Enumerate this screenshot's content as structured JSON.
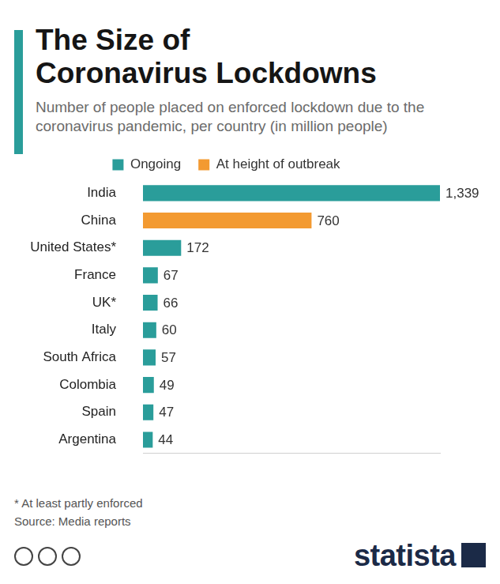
{
  "chart_data": {
    "type": "bar",
    "orientation": "horizontal",
    "title": "The Size of Coronavirus Lockdowns",
    "subtitle": "Number of people placed on enforced lockdown due to the coronavirus pandemic, per country (in million people)",
    "categories": [
      "India",
      "China",
      "United States*",
      "France",
      "UK*",
      "Italy",
      "South Africa",
      "Colombia",
      "Spain",
      "Argentina"
    ],
    "series": [
      {
        "name": "Ongoing",
        "color": "#2a9d9a",
        "values": [
          1339,
          null,
          172,
          67,
          66,
          60,
          57,
          49,
          47,
          44
        ],
        "value_labels": [
          "1,339",
          null,
          "172",
          "67",
          "66",
          "60",
          "57",
          "49",
          "47",
          "44"
        ]
      },
      {
        "name": "At height of outbreak",
        "color": "#f39a31",
        "values": [
          null,
          760,
          null,
          null,
          null,
          null,
          null,
          null,
          null,
          null
        ],
        "value_labels": [
          null,
          "760",
          null,
          null,
          null,
          null,
          null,
          null,
          null,
          null
        ]
      }
    ],
    "xlim": [
      0,
      1339
    ],
    "grid": false,
    "legend": "top",
    "data_labels": true,
    "tick_labels": "y",
    "footnote": "* At least partly enforced",
    "source": "Source: Media reports",
    "brand": "statista"
  }
}
